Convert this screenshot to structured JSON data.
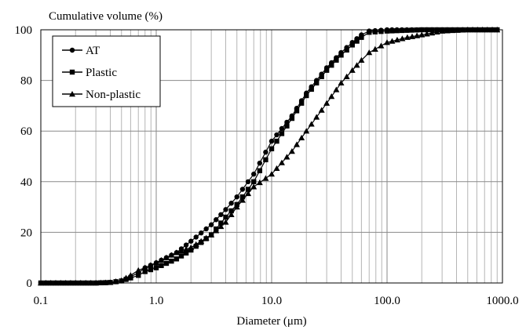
{
  "chart_data": {
    "type": "line",
    "x_scale": "log",
    "ylabel": "Cumulative volume (%)",
    "xlabel": "Diameter (μm)",
    "xlim": [
      0.1,
      1000
    ],
    "ylim": [
      0,
      100
    ],
    "x_tick_labels": [
      "0.1",
      "1.0",
      "10.0",
      "100.0",
      "1000.0"
    ],
    "y_tick_labels": [
      "0",
      "20",
      "40",
      "60",
      "80",
      "100"
    ],
    "grid": true,
    "legend_position": "top-left",
    "series": [
      {
        "name": "AT",
        "marker": "circle",
        "points": [
          [
            0.1,
            0
          ],
          [
            0.2,
            0
          ],
          [
            0.3,
            0
          ],
          [
            0.4,
            0.2
          ],
          [
            0.5,
            0.8
          ],
          [
            0.6,
            2.5
          ],
          [
            0.7,
            4
          ],
          [
            0.8,
            6
          ],
          [
            1.0,
            8
          ],
          [
            1.5,
            12
          ],
          [
            2,
            16.5
          ],
          [
            3,
            23
          ],
          [
            4,
            29
          ],
          [
            5,
            34
          ],
          [
            7,
            43
          ],
          [
            10,
            56
          ],
          [
            15,
            66
          ],
          [
            20,
            75
          ],
          [
            30,
            85
          ],
          [
            40,
            91
          ],
          [
            50,
            95
          ],
          [
            60,
            98
          ],
          [
            70,
            99.5
          ],
          [
            100,
            100
          ],
          [
            200,
            100
          ],
          [
            500,
            100
          ],
          [
            900,
            100
          ]
        ]
      },
      {
        "name": "Plastic",
        "marker": "square",
        "points": [
          [
            0.1,
            0
          ],
          [
            0.2,
            0
          ],
          [
            0.3,
            0
          ],
          [
            0.4,
            0.2
          ],
          [
            0.5,
            0.8
          ],
          [
            0.6,
            2
          ],
          [
            0.7,
            3
          ],
          [
            0.8,
            4.5
          ],
          [
            1.0,
            6
          ],
          [
            1.5,
            9.5
          ],
          [
            2,
            13
          ],
          [
            3,
            19
          ],
          [
            4,
            26
          ],
          [
            5,
            31
          ],
          [
            7,
            40
          ],
          [
            10,
            53
          ],
          [
            15,
            65
          ],
          [
            20,
            74
          ],
          [
            30,
            84
          ],
          [
            40,
            90
          ],
          [
            50,
            94
          ],
          [
            60,
            97
          ],
          [
            70,
            99
          ],
          [
            100,
            99.5
          ],
          [
            200,
            100
          ],
          [
            500,
            100
          ],
          [
            900,
            100
          ]
        ]
      },
      {
        "name": "Non-plastic",
        "marker": "triangle",
        "points": [
          [
            0.1,
            0
          ],
          [
            0.2,
            0
          ],
          [
            0.3,
            0
          ],
          [
            0.4,
            0.2
          ],
          [
            0.5,
            1
          ],
          [
            0.6,
            3
          ],
          [
            0.7,
            5
          ],
          [
            0.8,
            6
          ],
          [
            1.0,
            8
          ],
          [
            1.5,
            12
          ],
          [
            2,
            14
          ],
          [
            3,
            19
          ],
          [
            4,
            24
          ],
          [
            5,
            30
          ],
          [
            7,
            38
          ],
          [
            10,
            43
          ],
          [
            15,
            52
          ],
          [
            20,
            60
          ],
          [
            30,
            71
          ],
          [
            40,
            79
          ],
          [
            50,
            84
          ],
          [
            60,
            88
          ],
          [
            70,
            91
          ],
          [
            100,
            95
          ],
          [
            150,
            97
          ],
          [
            200,
            98
          ],
          [
            300,
            99.5
          ],
          [
            500,
            100
          ],
          [
            900,
            100
          ]
        ]
      }
    ]
  }
}
